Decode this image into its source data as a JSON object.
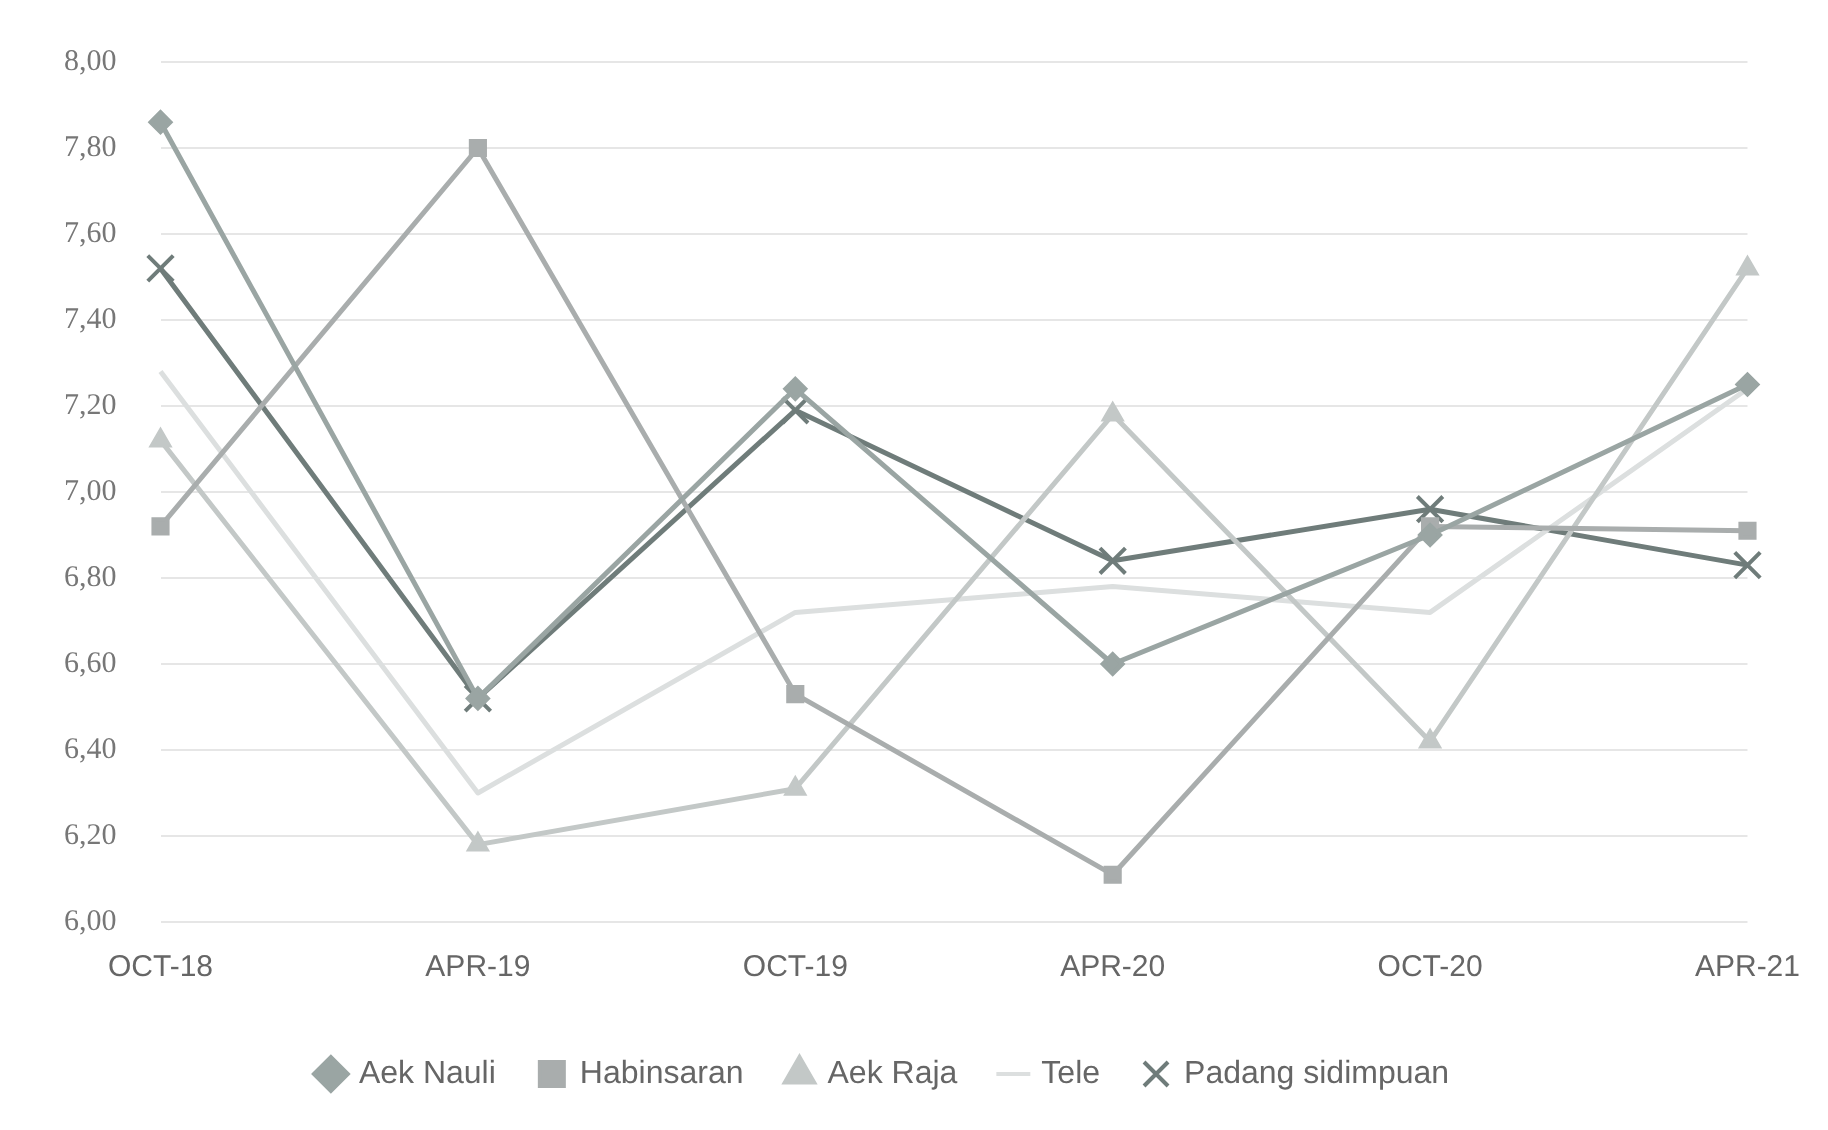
{
  "chart_data": {
    "type": "line",
    "categories": [
      "OCT-18",
      "APR-19",
      "OCT-19",
      "APR-20",
      "OCT-20",
      "APR-21"
    ],
    "series": [
      {
        "name": "Aek Nauli",
        "color": "#9aa5a3",
        "marker": "diamond",
        "values": [
          7.86,
          6.52,
          7.24,
          6.6,
          6.9,
          7.25
        ]
      },
      {
        "name": "Habinsaran",
        "color": "#a9adad",
        "marker": "square",
        "values": [
          6.92,
          7.8,
          6.53,
          6.11,
          6.92,
          6.91
        ]
      },
      {
        "name": "Aek Raja",
        "color": "#c3c8c7",
        "marker": "triangle",
        "values": [
          7.12,
          6.18,
          6.31,
          7.18,
          6.42,
          7.52
        ]
      },
      {
        "name": "Tele",
        "color": "#dcdfdf",
        "marker": "none",
        "values": [
          7.28,
          6.3,
          6.72,
          6.78,
          6.72,
          7.24
        ]
      },
      {
        "name": "Padang sidimpuan",
        "color": "#6f7c7a",
        "marker": "cross",
        "values": [
          7.52,
          6.52,
          7.19,
          6.84,
          6.96,
          6.83
        ]
      }
    ],
    "ylim": [
      6,
      8
    ],
    "yticks": [
      {
        "value": 6,
        "label": "6,00"
      },
      {
        "value": 6.2,
        "label": "6,20"
      },
      {
        "value": 6.4,
        "label": "6,40"
      },
      {
        "value": 6.6,
        "label": "6,60"
      },
      {
        "value": 6.8,
        "label": "6,80"
      },
      {
        "value": 7,
        "label": "7,00"
      },
      {
        "value": 7.2,
        "label": "7,20"
      },
      {
        "value": 7.4,
        "label": "7,40"
      },
      {
        "value": 7.6,
        "label": "7,60"
      },
      {
        "value": 7.8,
        "label": "7,80"
      },
      {
        "value": 8,
        "label": "8,00"
      }
    ],
    "grid": "y",
    "legend": "bottom",
    "line_style": "solid"
  }
}
